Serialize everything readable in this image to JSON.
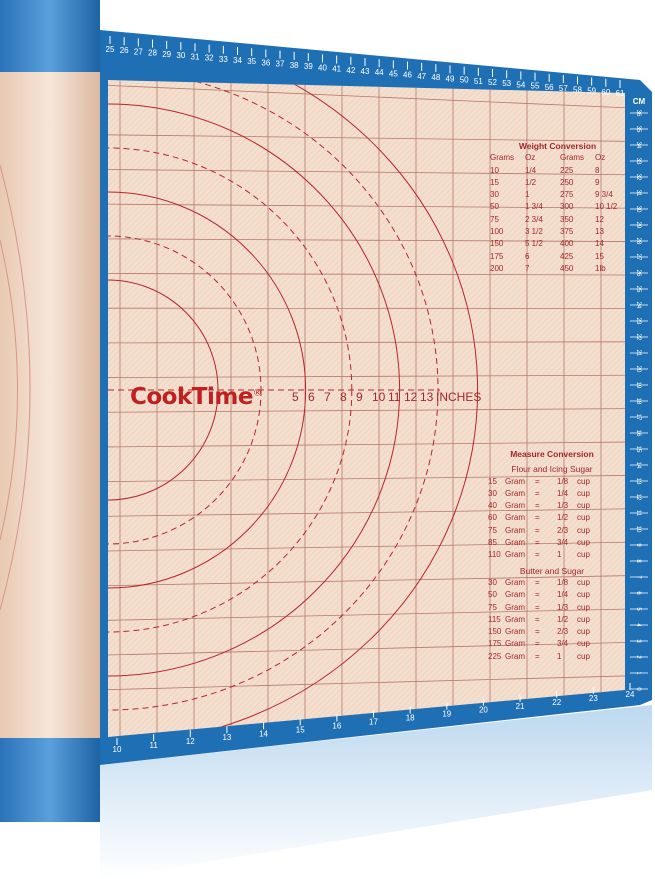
{
  "brand": {
    "name": "CookTime",
    "mark": "®"
  },
  "colors": {
    "blue": "#1f6fb5",
    "blue_dark": "#1a5f9e",
    "mat": "#f3dccb",
    "line": "#b06a5e",
    "red": "#a3272b"
  },
  "inch_scale": {
    "numbers": [
      "5",
      "6",
      "7",
      "8",
      "9",
      "10",
      "11",
      "12",
      "13"
    ],
    "unit": "INCHES"
  },
  "top_ruler": [
    "25",
    "26",
    "27",
    "28",
    "29",
    "30",
    "31",
    "32",
    "33",
    "34",
    "35",
    "36",
    "37",
    "38",
    "39",
    "40",
    "41",
    "42",
    "43",
    "44",
    "45",
    "46",
    "47",
    "48",
    "49",
    "50",
    "51",
    "52",
    "53",
    "54",
    "55",
    "56",
    "57",
    "58",
    "59",
    "60",
    "61"
  ],
  "bottom_ruler": [
    "10",
    "11",
    "12",
    "13",
    "14",
    "15",
    "16",
    "17",
    "18",
    "19",
    "20",
    "21",
    "22",
    "23",
    "24"
  ],
  "right_ruler": {
    "unit": "CM",
    "numbers": [
      "36",
      "35",
      "34",
      "33",
      "32",
      "31",
      "30",
      "29",
      "28",
      "27",
      "26",
      "25",
      "24",
      "23",
      "22",
      "21",
      "20",
      "19",
      "18",
      "17",
      "16",
      "15",
      "14",
      "13",
      "12",
      "11",
      "10",
      "9",
      "8",
      "7",
      "6",
      "5",
      "4",
      "3",
      "2",
      "1",
      "0"
    ]
  },
  "weight_conversion": {
    "title": "Weight Conversion",
    "headers": [
      "Grams",
      "Oz",
      "Grams",
      "Oz"
    ],
    "rows": [
      [
        "10",
        "1/4",
        "225",
        "8"
      ],
      [
        "15",
        "1/2",
        "250",
        "9"
      ],
      [
        "30",
        "1",
        "275",
        "9 3/4"
      ],
      [
        "50",
        "1 3/4",
        "300",
        "10 1/2"
      ],
      [
        "75",
        "2 3/4",
        "350",
        "12"
      ],
      [
        "100",
        "3 1/2",
        "375",
        "13"
      ],
      [
        "150",
        "5 1/2",
        "400",
        "14"
      ],
      [
        "175",
        "6",
        "425",
        "15"
      ],
      [
        "200",
        "7",
        "450",
        "1lb"
      ]
    ]
  },
  "measure_conversion": {
    "title": "Measure Conversion",
    "sections": [
      {
        "name": "Flour and Icing Sugar",
        "rows": [
          [
            "15",
            "Gram",
            "=",
            "1/8",
            "cup"
          ],
          [
            "30",
            "Gram",
            "=",
            "1/4",
            "cup"
          ],
          [
            "40",
            "Gram",
            "=",
            "1/3",
            "cup"
          ],
          [
            "60",
            "Gram",
            "=",
            "1/2",
            "cup"
          ],
          [
            "75",
            "Gram",
            "=",
            "2/3",
            "cup"
          ],
          [
            "85",
            "Gram",
            "=",
            "3/4",
            "cup"
          ],
          [
            "110",
            "Gram",
            "=",
            "1",
            "cup"
          ]
        ]
      },
      {
        "name": "Butter and Sugar",
        "rows": [
          [
            "30",
            "Gram",
            "=",
            "1/8",
            "cup"
          ],
          [
            "50",
            "Gram",
            "=",
            "1/4",
            "cup"
          ],
          [
            "75",
            "Gram",
            "=",
            "1/3",
            "cup"
          ],
          [
            "115",
            "Gram",
            "=",
            "1/2",
            "cup"
          ],
          [
            "150",
            "Gram",
            "=",
            "2/3",
            "cup"
          ],
          [
            "175",
            "Gram",
            "=",
            "3/4",
            "cup"
          ],
          [
            "225",
            "Gram",
            "=",
            "1",
            "cup"
          ]
        ]
      }
    ]
  }
}
